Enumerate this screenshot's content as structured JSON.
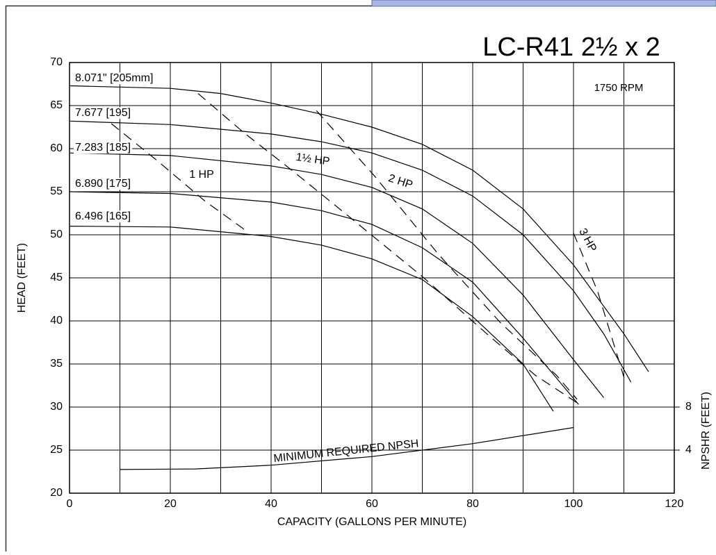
{
  "chart_data": {
    "type": "line",
    "title": "LC-R41 2½ x 2",
    "subtitle": "1750 RPM",
    "x_label": "CAPACITY (GALLONS PER MINUTE)",
    "y_label": "HEAD (FEET)",
    "y2_label": "NPSHR (FEET)",
    "xlim": [
      0,
      120
    ],
    "xticks": [
      0,
      20,
      40,
      60,
      80,
      100,
      120
    ],
    "xgrid": [
      0,
      10,
      20,
      30,
      40,
      50,
      60,
      70,
      80,
      90,
      100,
      110,
      120
    ],
    "ylim": [
      20,
      70
    ],
    "yticks": [
      20,
      25,
      30,
      35,
      40,
      45,
      50,
      55,
      60,
      65,
      70
    ],
    "y2lim": [
      0,
      40
    ],
    "y2ticks": [
      4,
      8
    ],
    "grid": true,
    "series": [
      {
        "name": "8.071\" [205mm]",
        "color": "#000000",
        "dash": false,
        "x": [
          0,
          20,
          30,
          40,
          50,
          60,
          70,
          80,
          90,
          100,
          110,
          114.9
        ],
        "values": [
          67.3,
          67.0,
          66.4,
          65.3,
          64.0,
          62.5,
          60.5,
          57.5,
          53,
          46.5,
          38.5,
          34.1
        ]
      },
      {
        "name": "7.677 [195]",
        "color": "#000000",
        "dash": false,
        "x": [
          0,
          20,
          40,
          50,
          60,
          70,
          80,
          90,
          100,
          106,
          111.4
        ],
        "values": [
          63.2,
          62.8,
          61.7,
          60.8,
          59.5,
          57.5,
          54.5,
          50,
          43.5,
          38.5,
          32.9
        ]
      },
      {
        "name": "7.283 [185]",
        "color": "#000000",
        "dash": false,
        "x": [
          0,
          20,
          40,
          50,
          60,
          70,
          80,
          90,
          100,
          106
        ],
        "values": [
          59.5,
          59.2,
          58,
          57,
          55.5,
          53,
          49,
          43,
          35.5,
          31.1
        ]
      },
      {
        "name": "6.890 [175]",
        "color": "#000000",
        "dash": false,
        "x": [
          0,
          20,
          40,
          50,
          60,
          70,
          80,
          90,
          101
        ],
        "values": [
          55,
          54.8,
          53.8,
          52.8,
          51.2,
          48.5,
          44.5,
          38,
          30.3
        ]
      },
      {
        "name": "6.496 [165]",
        "color": "#000000",
        "dash": false,
        "x": [
          0,
          20,
          40,
          50,
          60,
          70,
          80,
          90,
          96
        ],
        "values": [
          51,
          50.9,
          49.8,
          48.8,
          47.2,
          44.8,
          40.5,
          35,
          29.5
        ]
      },
      {
        "name": "1 HP",
        "color": "#000000",
        "dash": true,
        "x": [
          8.3,
          17.2,
          26.9,
          35.2
        ],
        "values": [
          62.9,
          58.7,
          53.9,
          50.4
        ]
      },
      {
        "name": "1½ HP",
        "color": "#000000",
        "dash": true,
        "x": [
          25.5,
          34.5,
          44.1,
          55.9,
          70.3,
          82.8,
          92.4,
          100.7
        ],
        "values": [
          66.4,
          61.9,
          57.5,
          51.9,
          45,
          38.5,
          33.7,
          30.5
        ]
      },
      {
        "name": "2 HP",
        "color": "#000000",
        "dash": true,
        "x": [
          49,
          60.7,
          73.1,
          85.5,
          96.6,
          100.7
        ],
        "values": [
          64.4,
          56.7,
          47.8,
          39.8,
          33.7,
          30.9
        ]
      },
      {
        "name": "3 HP",
        "color": "#000000",
        "dash": true,
        "x": [
          100,
          104.8,
          110.3
        ],
        "values": [
          50.2,
          43.4,
          32.9
        ]
      },
      {
        "name": "MINIMUM REQUIRED NPSH",
        "color": "#000000",
        "dash": false,
        "axis": "y2",
        "x": [
          10,
          25,
          40,
          60,
          80,
          100
        ],
        "values": [
          2.2,
          2.25,
          2.6,
          3.4,
          4.6,
          6.1
        ]
      }
    ]
  }
}
